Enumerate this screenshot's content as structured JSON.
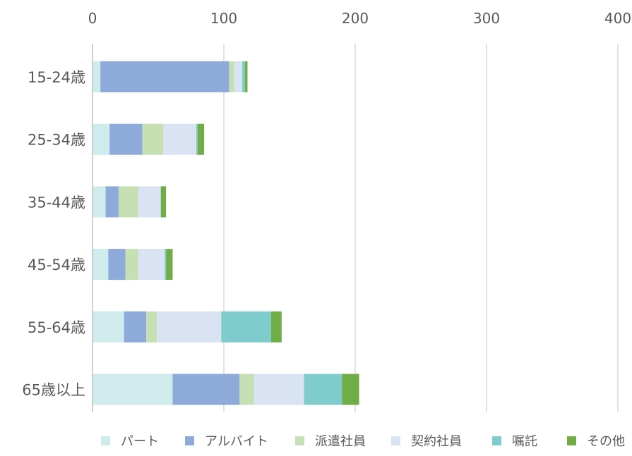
{
  "chart_data": {
    "type": "bar",
    "orientation": "horizontal",
    "stacked": true,
    "categories": [
      "15-24歳",
      "25-34歳",
      "35-44歳",
      "45-54歳",
      "55-64歳",
      "65歳以上"
    ],
    "series": [
      {
        "name": "パート",
        "color": "#cfebeb",
        "values": [
          6,
          13,
          10,
          12,
          24,
          61
        ]
      },
      {
        "name": "アルバイト",
        "color": "#8eaadb",
        "values": [
          98,
          25,
          10,
          13,
          17,
          51
        ]
      },
      {
        "name": "派遣社員",
        "color": "#c6e0b4",
        "values": [
          4,
          16,
          15,
          10,
          8,
          11
        ]
      },
      {
        "name": "契約社員",
        "color": "#dae3f3",
        "values": [
          6,
          25,
          17,
          20,
          49,
          38
        ]
      },
      {
        "name": "嘱託",
        "color": "#7fcccc",
        "values": [
          2,
          1,
          0,
          1,
          38,
          29
        ]
      },
      {
        "name": "その他",
        "color": "#70ad47",
        "values": [
          2,
          5,
          4,
          5,
          8,
          13
        ]
      }
    ],
    "xlim": [
      0,
      400
    ],
    "xticks": [
      "0",
      "100",
      "200",
      "300",
      "400"
    ],
    "grid": true,
    "x_axis_position": "top",
    "legend_position": "bottom"
  }
}
